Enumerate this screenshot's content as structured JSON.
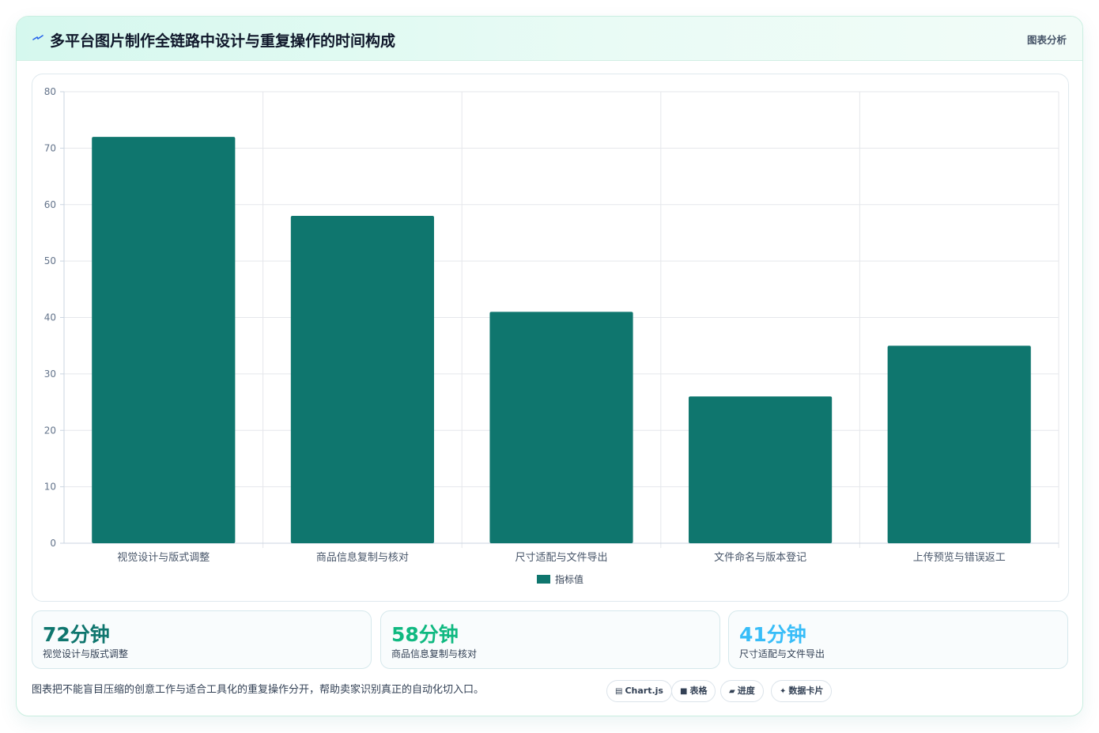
{
  "header": {
    "title": "多平台图片制作全链路中设计与重复操作的时间构成",
    "action_label": "图表分析",
    "icon": "lightning-icon",
    "accent": "#2563eb"
  },
  "chart_data": {
    "type": "bar",
    "categories": [
      "视觉设计与版式调整",
      "商品信息复制与核对",
      "尺寸适配与文件导出",
      "文件命名与版本登记",
      "上传预览与错误返工"
    ],
    "series": [
      {
        "name": "指标值",
        "values": [
          72,
          58,
          41,
          26,
          35
        ],
        "color": "#0f766e"
      }
    ],
    "ylim": [
      0,
      80
    ],
    "yticks": [
      0,
      10,
      20,
      30,
      40,
      50,
      60,
      70,
      80
    ],
    "grid": true,
    "legend_position": "bottom"
  },
  "stats": [
    {
      "value": "72分钟",
      "label": "视觉设计与版式调整",
      "color": "#0f766e"
    },
    {
      "value": "58分钟",
      "label": "商品信息复制与核对",
      "color": "#10b981"
    },
    {
      "value": "41分钟",
      "label": "尺寸适配与文件导出",
      "color": "#38bdf8"
    }
  ],
  "footnote": "图表把不能盲目压缩的创意工作与适合工具化的重复操作分开，帮助卖家识别真正的自动化切入口。",
  "chips": [
    {
      "icon": "▤",
      "icon_name": "chart-icon",
      "label": "Chart.js"
    },
    {
      "icon": "■",
      "icon_name": "table-icon",
      "label": "表格"
    },
    {
      "icon": "▰",
      "icon_name": "progress-icon",
      "label": "进度"
    },
    {
      "icon": "✦",
      "icon_name": "sparkle-icon",
      "label": "数据卡片"
    }
  ]
}
